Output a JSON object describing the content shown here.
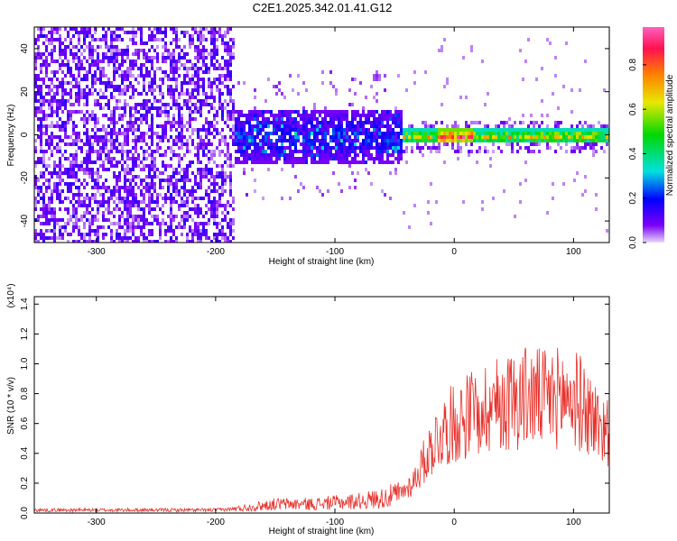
{
  "title": "C2E1.2025.342.01.41.G12",
  "chart_data": [
    {
      "type": "heatmap",
      "name": "spectrogram",
      "xlabel": "Height of straight line (km)",
      "ylabel": "Frequency (Hz)",
      "xlim": [
        -352,
        130
      ],
      "ylim": [
        -50,
        50
      ],
      "x_ticks": [
        -300,
        -200,
        -100,
        0,
        100
      ],
      "x_tick_labels": [
        "-300",
        "-200",
        "-100",
        "0",
        "100"
      ],
      "y_ticks": [
        -40,
        -20,
        0,
        20,
        40
      ],
      "y_tick_labels": [
        "-40",
        "-20",
        "0",
        "20",
        "40"
      ],
      "colorbar": {
        "label": "Normalized spectral amplitude",
        "range": [
          0,
          0.97
        ],
        "ticks": [
          0.0,
          0.2,
          0.4,
          0.6,
          0.8
        ],
        "tick_labels": [
          "0.0",
          "0.2",
          "0.4",
          "0.6",
          "0.8"
        ],
        "colormap": [
          "#e8d8f8",
          "#7a00f8",
          "#0000ff",
          "#00e0e0",
          "#00d800",
          "#e8e800",
          "#ff8000",
          "#ff1050",
          "#ff60c0"
        ]
      },
      "regions": [
        {
          "x": [
            -352,
            -185
          ],
          "freq_band": [
            -50,
            50
          ],
          "amplitude": "low (0.0-0.15), noise-like"
        },
        {
          "x": [
            -185,
            -45
          ],
          "freq_band": [
            -12,
            12
          ],
          "amplitude": "medium (0.1-0.35)"
        },
        {
          "x": [
            -45,
            130
          ],
          "freq_band": [
            -3,
            3
          ],
          "amplitude": "high (0.3-0.97), peak near 0 km"
        }
      ]
    },
    {
      "type": "line",
      "name": "snr",
      "xlabel": "Height of straight line (km)",
      "ylabel": "SNR (10 * v/v)",
      "y_scale_label": "(x10⁴)",
      "xlim": [
        -352,
        130
      ],
      "ylim": [
        0,
        1.45
      ],
      "x_ticks": [
        -300,
        -200,
        -100,
        0,
        100
      ],
      "x_tick_labels": [
        "-300",
        "-200",
        "-100",
        "0",
        "100"
      ],
      "y_ticks": [
        0.0,
        0.2,
        0.4,
        0.6,
        0.8,
        1.0,
        1.2,
        1.4
      ],
      "y_tick_labels": [
        "0.0",
        "0.2",
        "0.4",
        "0.6",
        "0.8",
        "1.0",
        "1.2",
        "1.4"
      ],
      "color": "#e8302a",
      "x": [
        -352,
        -300,
        -250,
        -200,
        -180,
        -150,
        -120,
        -100,
        -80,
        -60,
        -45,
        -35,
        -25,
        -15,
        -5,
        0,
        10,
        20,
        30,
        40,
        50,
        60,
        70,
        80,
        90,
        100,
        110,
        120,
        130
      ],
      "y": [
        0.02,
        0.02,
        0.02,
        0.02,
        0.03,
        0.06,
        0.06,
        0.07,
        0.08,
        0.1,
        0.13,
        0.2,
        0.35,
        0.5,
        0.58,
        0.6,
        0.65,
        0.7,
        0.72,
        0.74,
        0.76,
        0.78,
        0.77,
        0.76,
        0.78,
        0.77,
        0.7,
        0.6,
        0.55
      ]
    }
  ]
}
